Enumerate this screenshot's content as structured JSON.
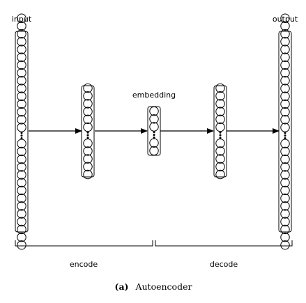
{
  "diagram": {
    "caption": {
      "tag": "(a)",
      "text": "Autoencoder"
    },
    "layers": [
      {
        "id": "input",
        "label": "input",
        "top_neurons": 15,
        "bottom_neurons": 14
      },
      {
        "id": "hidden1",
        "label": "",
        "top_neurons": 6,
        "bottom_neurons": 5
      },
      {
        "id": "embedding",
        "label": "embedding",
        "top_neurons": 3,
        "bottom_neurons": 2
      },
      {
        "id": "hidden2",
        "label": "",
        "top_neurons": 6,
        "bottom_neurons": 5
      },
      {
        "id": "output",
        "label": "output",
        "top_neurons": 15,
        "bottom_neurons": 14
      }
    ],
    "connections": [
      {
        "from": "input",
        "to": "hidden1"
      },
      {
        "from": "hidden1",
        "to": "embedding"
      },
      {
        "from": "embedding",
        "to": "hidden2"
      },
      {
        "from": "hidden2",
        "to": "output"
      }
    ],
    "groups": [
      {
        "id": "encode",
        "label": "encode"
      },
      {
        "id": "decode",
        "label": "decode"
      }
    ]
  },
  "colors": {
    "stroke": "#000000",
    "background": "#ffffff"
  }
}
